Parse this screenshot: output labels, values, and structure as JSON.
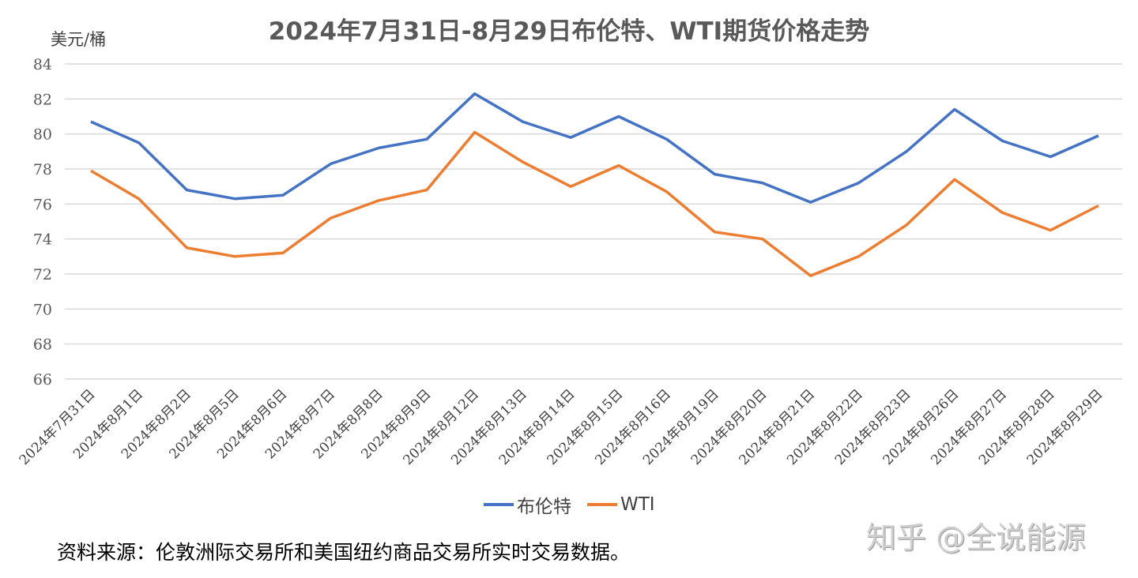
{
  "title": "2024年7月31日-8月29日布伦特、WTI期货价格走势",
  "unit_label": "美元/桶",
  "source_note": "资料来源：伦敦洲际交易所和美国纽约商品交易所实时交易数据。",
  "watermark": "知乎 @全说能源",
  "legend": [
    {
      "label": "布伦特",
      "color": "#4472C4"
    },
    {
      "label": "WTI",
      "color": "#ED7D31"
    }
  ],
  "chart_data": {
    "type": "line",
    "title": "2024年7月31日-8月29日布伦特、WTI期货价格走势",
    "xlabel": "",
    "ylabel": "美元/桶",
    "ylim": [
      66,
      84
    ],
    "yticks": [
      66,
      68,
      70,
      72,
      74,
      76,
      78,
      80,
      82,
      84
    ],
    "grid": true,
    "legend_position": "bottom",
    "categories": [
      "2024年7月31日",
      "2024年8月1日",
      "2024年8月2日",
      "2024年8月5日",
      "2024年8月6日",
      "2024年8月7日",
      "2024年8月8日",
      "2024年8月9日",
      "2024年8月12日",
      "2024年8月13日",
      "2024年8月14日",
      "2024年8月15日",
      "2024年8月16日",
      "2024年8月19日",
      "2024年8月20日",
      "2024年8月21日",
      "2024年8月22日",
      "2024年8月23日",
      "2024年8月26日",
      "2024年8月27日",
      "2024年8月28日",
      "2024年8月29日"
    ],
    "series": [
      {
        "name": "布伦特",
        "color": "#4472C4",
        "values": [
          80.7,
          79.5,
          76.8,
          76.3,
          76.5,
          78.3,
          79.2,
          79.7,
          82.3,
          80.7,
          79.8,
          81.0,
          79.7,
          77.7,
          77.2,
          76.1,
          77.2,
          79.0,
          81.4,
          79.6,
          78.7,
          79.9
        ]
      },
      {
        "name": "WTI",
        "color": "#ED7D31",
        "values": [
          77.9,
          76.3,
          73.5,
          73.0,
          73.2,
          75.2,
          76.2,
          76.8,
          80.1,
          78.4,
          77.0,
          78.2,
          76.7,
          74.4,
          74.0,
          71.9,
          73.0,
          74.8,
          77.4,
          75.5,
          74.5,
          75.9
        ]
      }
    ]
  }
}
